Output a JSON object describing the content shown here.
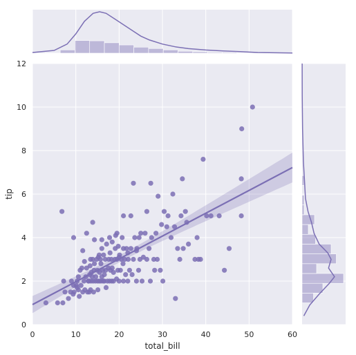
{
  "chart_data": {
    "type": "scatter",
    "subtype": "jointplot with regression line, 95% confidence band, marginal histograms and KDE curves",
    "xlabel": "total_bill",
    "ylabel": "tip",
    "xlim": [
      0,
      60
    ],
    "ylim": [
      0,
      12
    ],
    "xticks": [
      "0",
      "10",
      "20",
      "30",
      "40",
      "50",
      "60"
    ],
    "yticks": [
      "0",
      "2",
      "4",
      "6",
      "8",
      "10",
      "12"
    ],
    "grid": true,
    "color": "#7b6fb4",
    "background": "#eaeaf2",
    "regression": {
      "intercept": 0.92,
      "slope": 0.105
    },
    "points": [
      [
        3.1,
        1.0
      ],
      [
        5.8,
        1.0
      ],
      [
        7.0,
        1.0
      ],
      [
        7.5,
        1.5
      ],
      [
        7.2,
        2.0
      ],
      [
        8.3,
        1.2
      ],
      [
        8.8,
        1.5
      ],
      [
        9.0,
        2.0
      ],
      [
        9.6,
        1.5
      ],
      [
        9.4,
        1.4
      ],
      [
        10.1,
        1.8
      ],
      [
        10.3,
        1.7
      ],
      [
        10.3,
        2.0
      ],
      [
        10.6,
        1.6
      ],
      [
        10.8,
        1.3
      ],
      [
        11.0,
        2.5
      ],
      [
        11.2,
        1.8
      ],
      [
        11.4,
        2.6
      ],
      [
        11.6,
        1.5
      ],
      [
        11.9,
        2.0
      ],
      [
        12.1,
        1.6
      ],
      [
        12.3,
        2.2
      ],
      [
        12.5,
        2.6
      ],
      [
        12.7,
        1.5
      ],
      [
        12.9,
        2.0
      ],
      [
        13.0,
        2.0
      ],
      [
        13.1,
        1.5
      ],
      [
        13.2,
        2.3
      ],
      [
        13.3,
        2.7
      ],
      [
        13.4,
        1.6
      ],
      [
        13.5,
        2.0
      ],
      [
        13.6,
        2.4
      ],
      [
        13.8,
        2.2
      ],
      [
        13.9,
        3.0
      ],
      [
        14.0,
        2.0
      ],
      [
        14.1,
        1.5
      ],
      [
        14.2,
        2.5
      ],
      [
        14.3,
        2.8
      ],
      [
        14.5,
        2.0
      ],
      [
        14.6,
        2.2
      ],
      [
        14.8,
        3.0
      ],
      [
        15.0,
        2.0
      ],
      [
        15.0,
        2.5
      ],
      [
        15.1,
        1.6
      ],
      [
        15.2,
        3.1
      ],
      [
        15.4,
        2.0
      ],
      [
        15.5,
        2.4
      ],
      [
        15.7,
        3.0
      ],
      [
        15.8,
        2.0
      ],
      [
        16.0,
        2.2
      ],
      [
        16.0,
        3.5
      ],
      [
        16.2,
        2.5
      ],
      [
        16.3,
        2.0
      ],
      [
        16.4,
        3.2
      ],
      [
        16.6,
        2.0
      ],
      [
        16.8,
        3.0
      ],
      [
        16.9,
        2.5
      ],
      [
        17.0,
        1.7
      ],
      [
        17.1,
        3.7
      ],
      [
        17.3,
        2.0
      ],
      [
        17.5,
        2.6
      ],
      [
        17.6,
        3.0
      ],
      [
        17.8,
        2.0
      ],
      [
        17.9,
        3.3
      ],
      [
        18.0,
        2.5
      ],
      [
        18.2,
        3.0
      ],
      [
        18.3,
        2.0
      ],
      [
        18.4,
        3.8
      ],
      [
        18.7,
        2.0
      ],
      [
        18.7,
        2.4
      ],
      [
        19.0,
        3.0
      ],
      [
        19.1,
        3.5
      ],
      [
        19.4,
        2.1
      ],
      [
        19.5,
        3.0
      ],
      [
        19.7,
        2.5
      ],
      [
        19.8,
        3.6
      ],
      [
        20.0,
        2.0
      ],
      [
        20.1,
        3.2
      ],
      [
        20.3,
        2.5
      ],
      [
        20.5,
        3.0
      ],
      [
        20.7,
        4.0
      ],
      [
        20.9,
        2.8
      ],
      [
        21.0,
        3.5
      ],
      [
        21.0,
        2.0
      ],
      [
        21.3,
        3.0
      ],
      [
        21.5,
        2.3
      ],
      [
        21.7,
        3.5
      ],
      [
        22.0,
        2.0
      ],
      [
        22.1,
        3.0
      ],
      [
        22.4,
        2.5
      ],
      [
        22.7,
        3.5
      ],
      [
        23.0,
        2.3
      ],
      [
        23.3,
        3.0
      ],
      [
        23.6,
        4.0
      ],
      [
        24.0,
        2.0
      ],
      [
        24.1,
        3.5
      ],
      [
        24.5,
        2.5
      ],
      [
        24.8,
        3.0
      ],
      [
        25.0,
        4.2
      ],
      [
        25.3,
        2.0
      ],
      [
        25.6,
        3.1
      ],
      [
        26.0,
        4.2
      ],
      [
        26.4,
        3.0
      ],
      [
        26.9,
        3.5
      ],
      [
        27.2,
        2.0
      ],
      [
        27.5,
        4.0
      ],
      [
        28.0,
        3.0
      ],
      [
        28.2,
        2.5
      ],
      [
        28.5,
        4.2
      ],
      [
        28.8,
        3.0
      ],
      [
        29.0,
        5.9
      ],
      [
        29.5,
        2.5
      ],
      [
        29.8,
        4.6
      ],
      [
        30.1,
        2.0
      ],
      [
        30.4,
        5.2
      ],
      [
        31.0,
        4.5
      ],
      [
        31.3,
        5.0
      ],
      [
        32.0,
        4.0
      ],
      [
        32.4,
        6.0
      ],
      [
        32.8,
        4.5
      ],
      [
        33.0,
        1.2
      ],
      [
        33.5,
        3.5
      ],
      [
        34.0,
        3.0
      ],
      [
        34.3,
        5.0
      ],
      [
        34.8,
        3.5
      ],
      [
        35.3,
        5.2
      ],
      [
        35.6,
        4.7
      ],
      [
        36.0,
        3.7
      ],
      [
        38.0,
        4.0
      ],
      [
        38.3,
        3.0
      ],
      [
        38.8,
        3.0
      ],
      [
        39.4,
        7.6
      ],
      [
        40.2,
        5.0
      ],
      [
        41.2,
        5.0
      ],
      [
        43.1,
        5.0
      ],
      [
        44.3,
        2.5
      ],
      [
        45.4,
        3.5
      ],
      [
        48.2,
        5.0
      ],
      [
        48.2,
        6.7
      ],
      [
        48.3,
        9.0
      ],
      [
        50.8,
        10.0
      ],
      [
        6.8,
        5.2
      ],
      [
        9.5,
        4.0
      ],
      [
        12.5,
        4.2
      ],
      [
        13.9,
        4.7
      ],
      [
        15.4,
        3.2
      ],
      [
        16.0,
        3.9
      ],
      [
        17.8,
        4.0
      ],
      [
        19.5,
        4.2
      ],
      [
        21.0,
        5.0
      ],
      [
        22.7,
        5.0
      ],
      [
        23.3,
        6.5
      ],
      [
        24.6,
        4.0
      ],
      [
        26.4,
        5.2
      ],
      [
        27.3,
        6.5
      ],
      [
        34.6,
        6.7
      ],
      [
        37.5,
        3.0
      ],
      [
        11.6,
        3.4
      ],
      [
        14.3,
        3.9
      ],
      [
        19.2,
        4.1
      ],
      [
        12.0,
        2.9
      ],
      [
        15.8,
        2.8
      ],
      [
        18.4,
        2.6
      ],
      [
        20.0,
        3.1
      ],
      [
        22.0,
        3.3
      ],
      [
        24.0,
        3.4
      ],
      [
        10.6,
        2.2
      ],
      [
        13.4,
        3.0
      ],
      [
        16.6,
        2.3
      ],
      [
        9.5,
        1.8
      ]
    ],
    "top_histogram": {
      "bin_edges": [
        3,
        6.4,
        9.8,
        13.2,
        16.6,
        20,
        23.4,
        26.8,
        30.2,
        33.6,
        37,
        40.4,
        43.8,
        47.2,
        50.6
      ],
      "counts": [
        2,
        12,
        46,
        45,
        38,
        30,
        22,
        17,
        12,
        7,
        5,
        3,
        3,
        2
      ]
    },
    "right_histogram": {
      "bin_edges": [
        1.0,
        1.45,
        1.9,
        2.35,
        2.8,
        3.25,
        3.7,
        4.15,
        4.6,
        5.05,
        5.5,
        5.95,
        6.4,
        6.85
      ],
      "counts": [
        11,
        20,
        40,
        14,
        33,
        28,
        13,
        6,
        12,
        2,
        2,
        0,
        2
      ]
    },
    "top_kde": [
      [
        0,
        0.003
      ],
      [
        5,
        0.012
      ],
      [
        8,
        0.04
      ],
      [
        10,
        0.085
      ],
      [
        12,
        0.14
      ],
      [
        14,
        0.175
      ],
      [
        15.5,
        0.182
      ],
      [
        17,
        0.175
      ],
      [
        19,
        0.15
      ],
      [
        21,
        0.125
      ],
      [
        23,
        0.1
      ],
      [
        25,
        0.075
      ],
      [
        27,
        0.058
      ],
      [
        30,
        0.04
      ],
      [
        33,
        0.028
      ],
      [
        36,
        0.02
      ],
      [
        40,
        0.014
      ],
      [
        44,
        0.01
      ],
      [
        48,
        0.007
      ],
      [
        52,
        0.003
      ],
      [
        60,
        0.0005
      ]
    ],
    "right_kde": [
      [
        0.4,
        0.02
      ],
      [
        0.9,
        0.09
      ],
      [
        1.4,
        0.2
      ],
      [
        1.9,
        0.32
      ],
      [
        2.2,
        0.38
      ],
      [
        2.6,
        0.31
      ],
      [
        3.0,
        0.34
      ],
      [
        3.3,
        0.3
      ],
      [
        3.7,
        0.2
      ],
      [
        4.2,
        0.14
      ],
      [
        4.7,
        0.11
      ],
      [
        5.2,
        0.07
      ],
      [
        5.8,
        0.04
      ],
      [
        6.5,
        0.03
      ],
      [
        7.5,
        0.015
      ],
      [
        9,
        0.006
      ],
      [
        10.5,
        0.002
      ],
      [
        12,
        0.0005
      ]
    ]
  }
}
